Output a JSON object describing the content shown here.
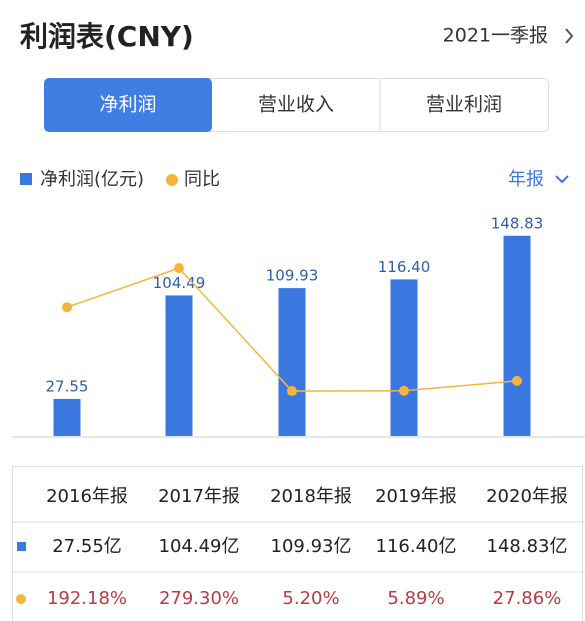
{
  "header": {
    "title": "利润表(CNY)",
    "period": "2021一季报"
  },
  "tabs": [
    "净利润",
    "营业收入",
    "营业利润"
  ],
  "period_selector": "年报",
  "chart_data": {
    "type": "bar-line",
    "categories": [
      "2016年报",
      "2017年报",
      "2018年报",
      "2019年报",
      "2020年报"
    ],
    "series": [
      {
        "name": "净利润(亿元)",
        "color": "#3a78e0",
        "type": "bar",
        "values": [
          27.55,
          104.49,
          109.93,
          116.4,
          148.83
        ],
        "value_labels": [
          "27.55",
          "104.49",
          "109.93",
          "116.40",
          "148.83"
        ]
      },
      {
        "name": "同比",
        "color": "#f5b53d",
        "type": "line",
        "axis": "y2",
        "values": [
          192.18,
          279.3,
          5.2,
          5.89,
          27.86
        ],
        "value_labels": [
          "192.18%",
          "279.30%",
          "5.20%",
          "5.89%",
          "27.86%"
        ]
      }
    ],
    "ylim": [
      0,
      165
    ],
    "y2lim": [
      -95,
      400
    ]
  },
  "table": {
    "rows": [
      [
        "27.55亿",
        "104.49亿",
        "109.93亿",
        "116.40亿",
        "148.83亿"
      ]
    ]
  }
}
